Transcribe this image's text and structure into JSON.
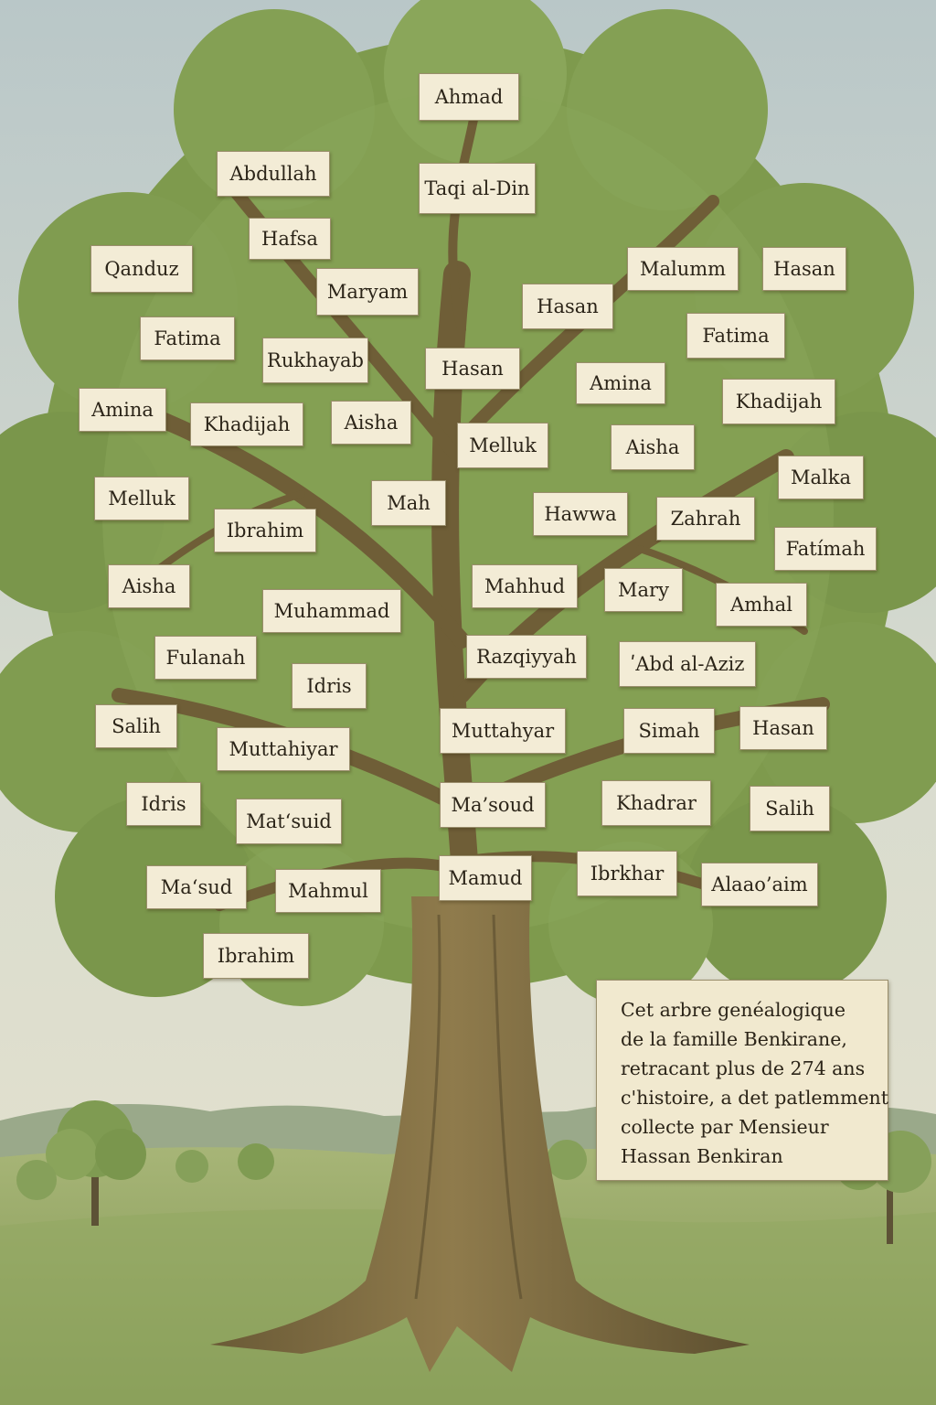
{
  "tree": {
    "names": [
      "Ahmad",
      "Abdullah",
      "Taqi al-Din",
      "Hafsa",
      "Qanduz",
      "Maryam",
      "Malumm",
      "Hasan",
      "Hasan",
      "Fatima",
      "Rukhayab",
      "Hasan",
      "Fatima",
      "Amina",
      "Amina",
      "Khadijah",
      "Khadijah",
      "Aisha",
      "Melluk",
      "Aisha",
      "Malka",
      "Melluk",
      "Mah",
      "Hawwa",
      "Zahrah",
      "Ibrahim",
      "Fatímah",
      "Aisha",
      "Mahhud",
      "Mary",
      "Amhal",
      "Muhammad",
      "Fulanah",
      "Razqiyyah",
      "ʹAbd al-Aziz",
      "Idris",
      "Salih",
      "Muttahyar",
      "Simah",
      "Hasan",
      "Muttahiyar",
      "Idris",
      "Ma’soud",
      "Khadrar",
      "Salih",
      "Mat‘suid",
      "Mamud",
      "Ibrkhar",
      "Ma‘sud",
      "Mahmul",
      "Alaao’aim",
      "Ibrahim"
    ]
  },
  "caption": {
    "lines": [
      "Cet arbre genéalogique",
      "de la famille Benkirane,",
      "retracant plus de 274 ans",
      "c'histoire, a det patlemment",
      "collecte par Mensieur",
      "Hassan Benkiran"
    ]
  }
}
